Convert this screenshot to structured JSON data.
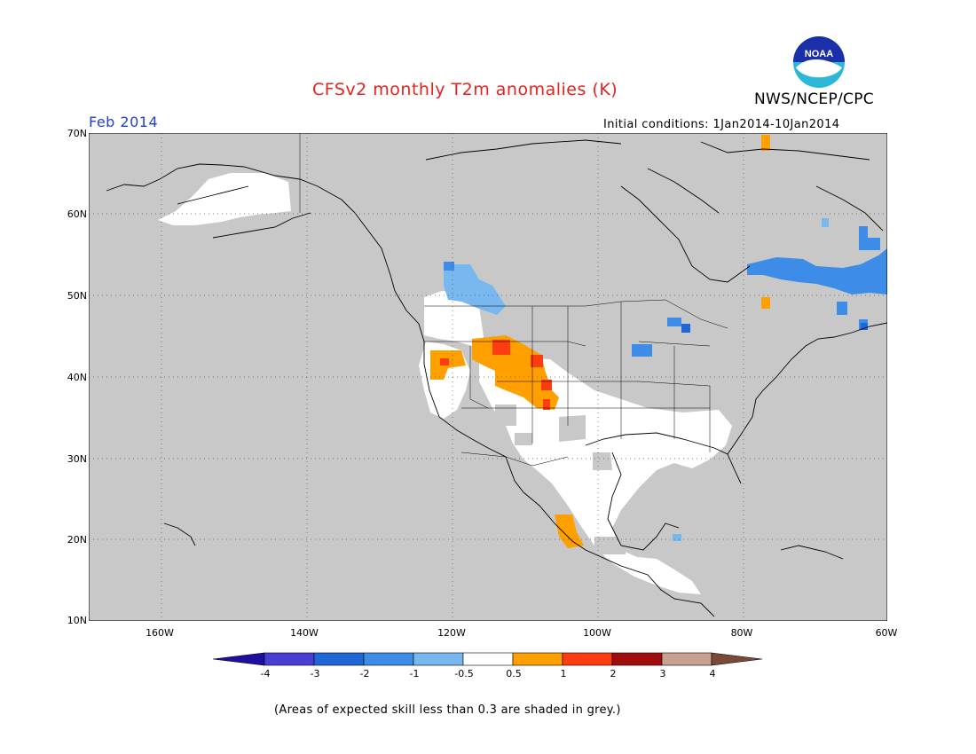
{
  "header": {
    "title": "CFSv2 monthly T2m anomalies (K)",
    "org": "NWS/NCEP/CPC",
    "logo_text": "NOAA",
    "month": "Feb 2014",
    "initial_conditions": "Initial conditions: 1Jan2014-10Jan2014"
  },
  "map": {
    "lat_labels": [
      "70N",
      "60N",
      "50N",
      "40N",
      "30N",
      "20N",
      "10N"
    ],
    "lon_labels": [
      "160W",
      "140W",
      "120W",
      "100W",
      "80W",
      "60W"
    ],
    "background_color": "#c8c8c8"
  },
  "colorbar": {
    "labels": [
      "-4",
      "-3",
      "-2",
      "-1",
      "-0.5",
      "0.5",
      "1",
      "2",
      "3",
      "4"
    ],
    "colors": [
      "#1f0fa0",
      "#4a3dd4",
      "#1f66d6",
      "#3d8ce8",
      "#78b8ee",
      "#ffffff",
      "#ff9f00",
      "#ff3b12",
      "#a00c0c",
      "#c8a090",
      "#7a4a38"
    ]
  },
  "footnote": "(Areas of expected skill less than 0.3 are shaded in grey.)"
}
